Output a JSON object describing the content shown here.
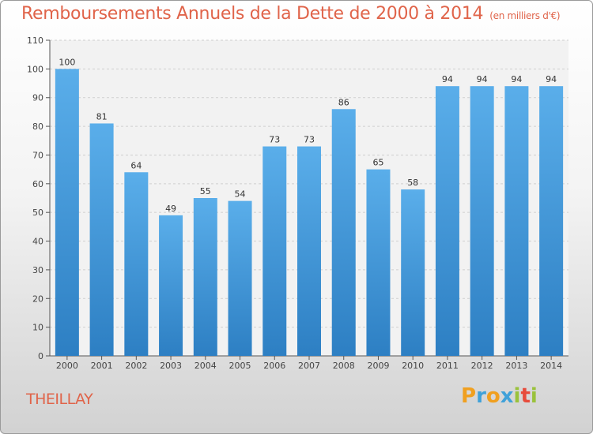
{
  "chart_data": {
    "type": "bar",
    "title": "Remboursements Annuels de la Dette de 2000 à 2014",
    "unit": "(en milliers d'€)",
    "categories": [
      "2000",
      "2001",
      "2002",
      "2003",
      "2004",
      "2005",
      "2006",
      "2007",
      "2008",
      "2009",
      "2010",
      "2011",
      "2012",
      "2013",
      "2014"
    ],
    "values": [
      100,
      81,
      64,
      49,
      55,
      54,
      73,
      73,
      86,
      65,
      58,
      94,
      94,
      94,
      94
    ],
    "ylim": [
      0,
      110
    ],
    "yticks": [
      0,
      10,
      20,
      30,
      40,
      50,
      60,
      70,
      80,
      90,
      100,
      110
    ],
    "grid": true,
    "bar_color": "#4a9fe0"
  },
  "location": "THEILLAY",
  "brand": {
    "letters": [
      "P",
      "r",
      "o",
      "x",
      "i",
      "t",
      "i"
    ],
    "colors": [
      "#f0a020",
      "#3fa1d9",
      "#f0a020",
      "#3fa1d9",
      "#9ac23c",
      "#e74c3c",
      "#9ac23c"
    ]
  },
  "colors": {
    "accent": "#e0644a"
  }
}
